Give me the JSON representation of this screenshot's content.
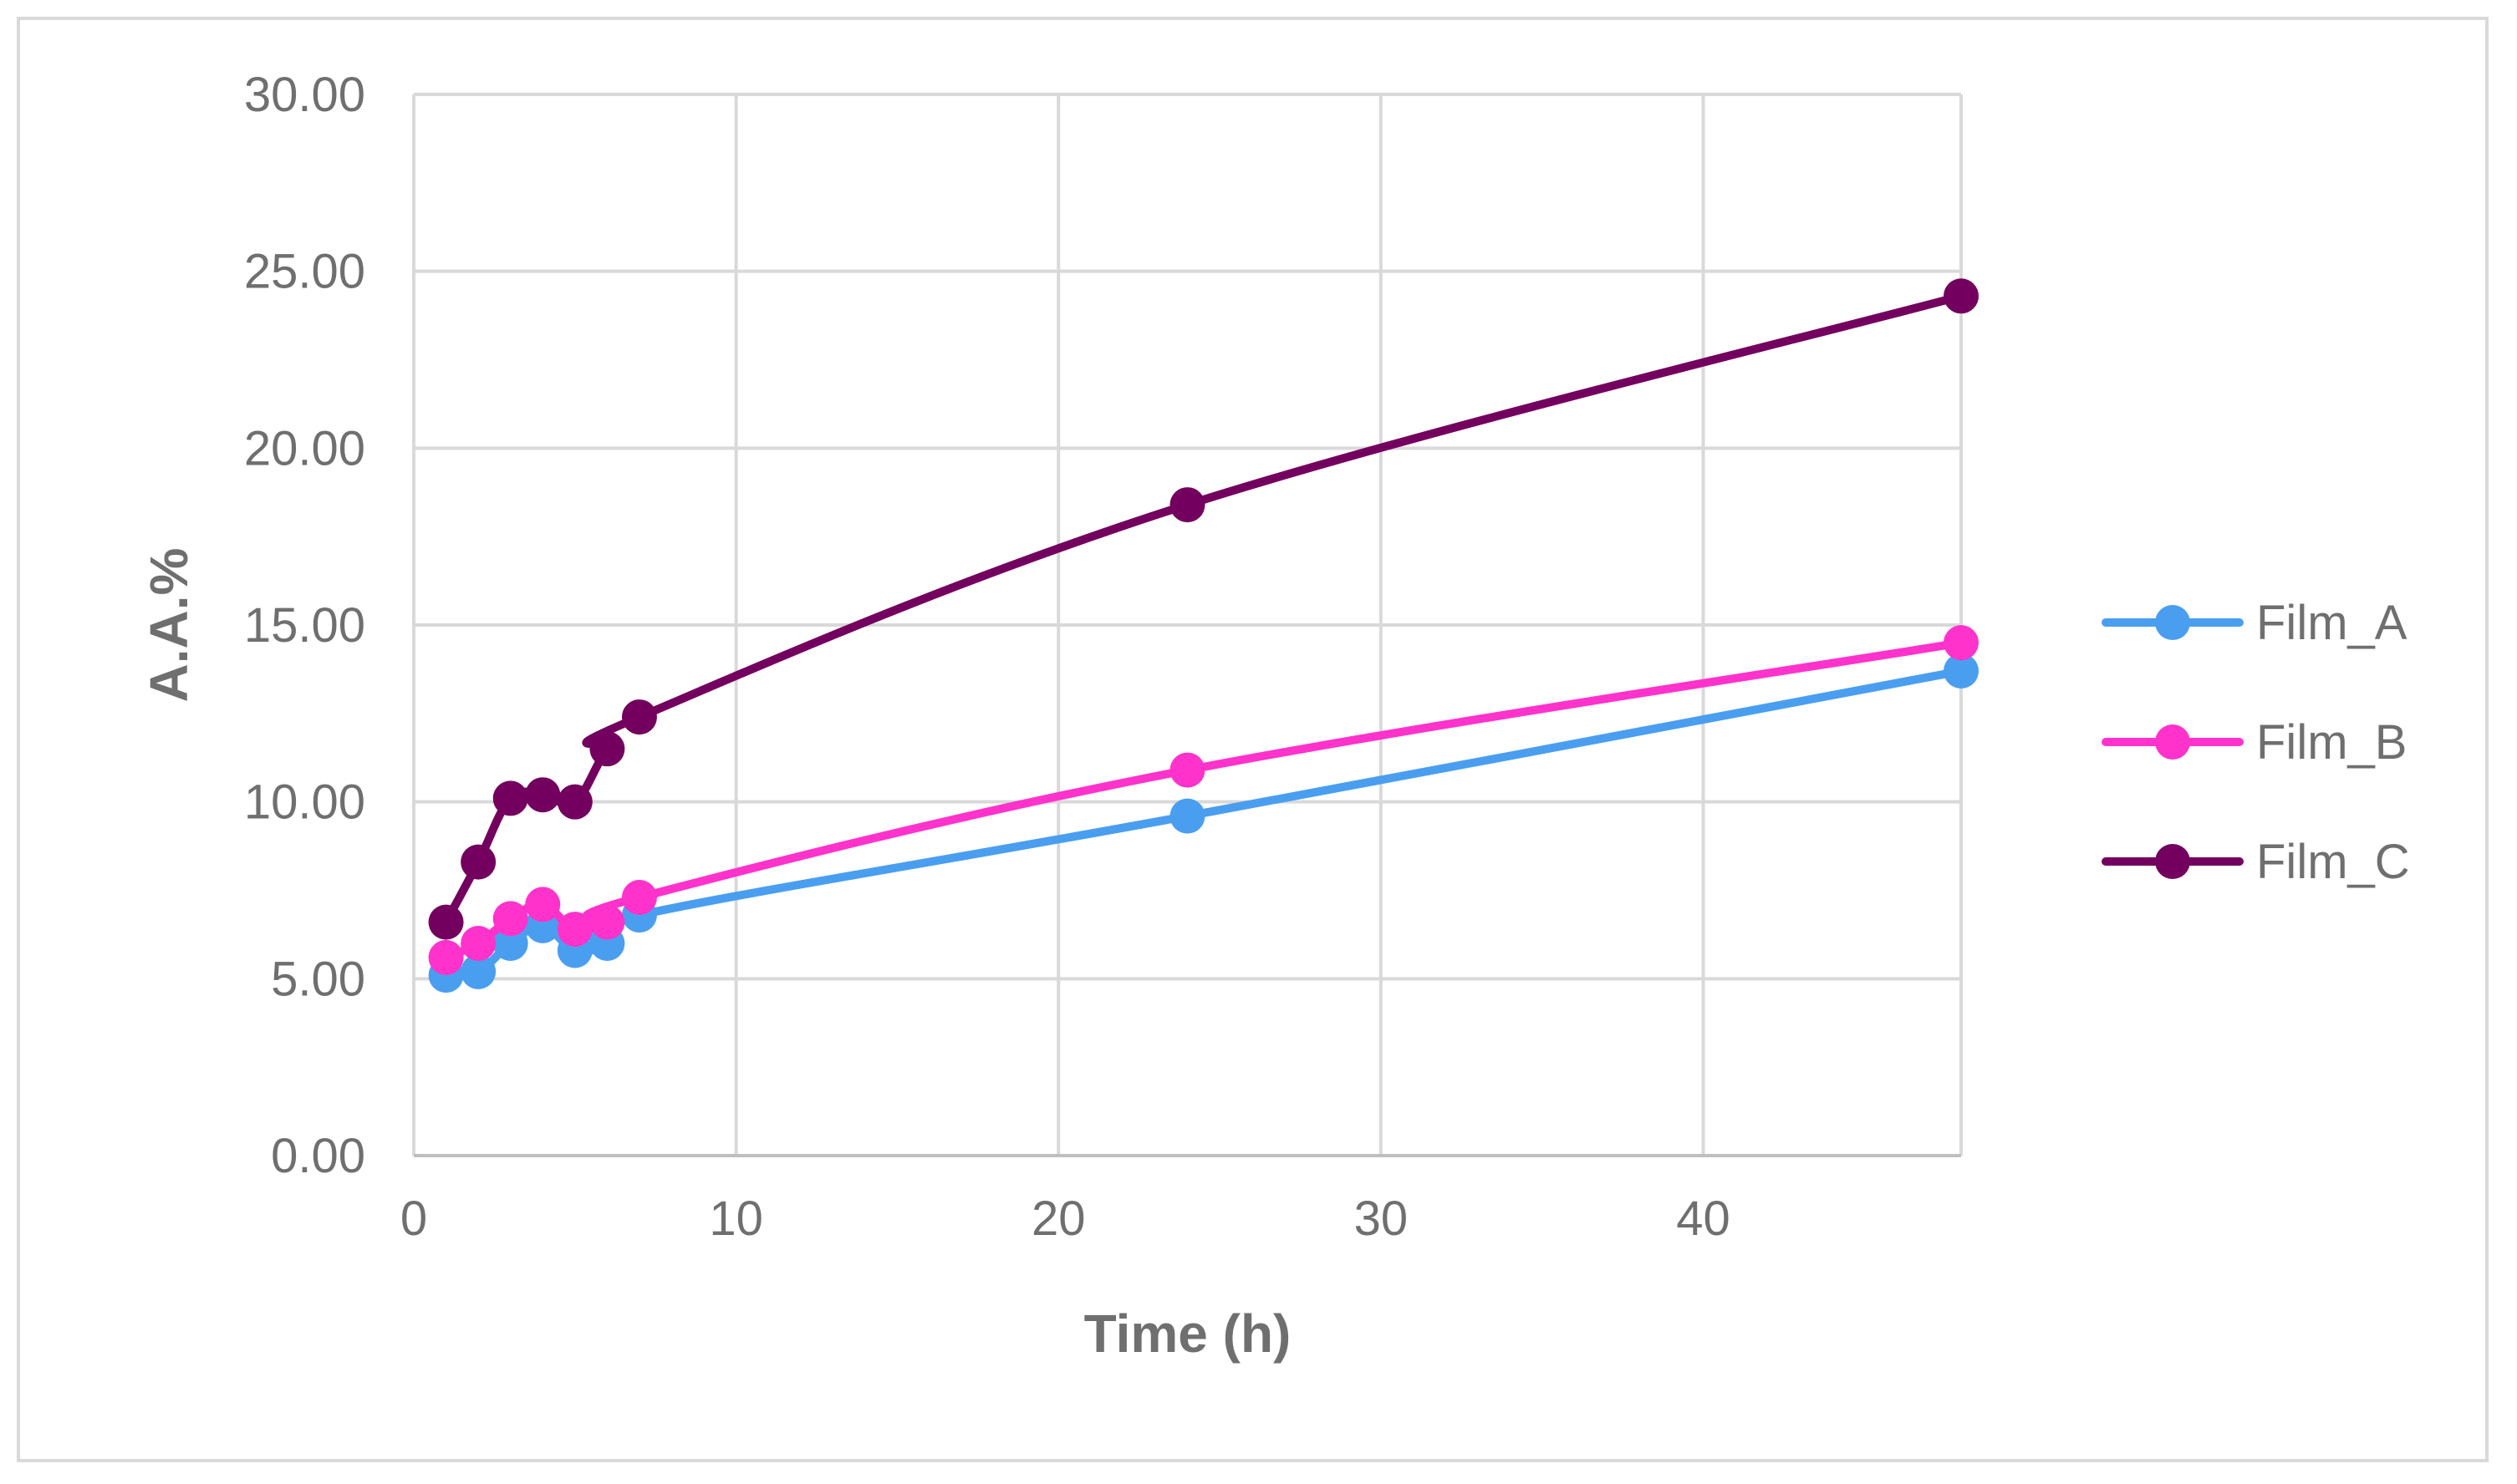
{
  "chart_data": {
    "type": "line",
    "title": "",
    "xlabel": "Time (h)",
    "ylabel": "A.A.%",
    "xlim": [
      0,
      48
    ],
    "ylim": [
      0,
      30
    ],
    "x_ticks": [
      0,
      10,
      20,
      30,
      40
    ],
    "x_tick_labels": [
      "0",
      "10",
      "20",
      "30",
      "40"
    ],
    "y_ticks": [
      0,
      5,
      10,
      15,
      20,
      25,
      30
    ],
    "y_tick_labels": [
      "0.00",
      "5.00",
      "10.00",
      "15.00",
      "20.00",
      "25.00",
      "30.00"
    ],
    "grid": true,
    "legend_position": "right",
    "series": [
      {
        "name": "Film_A",
        "color": "#4a9ef0",
        "x": [
          1,
          2,
          3,
          4,
          5,
          6,
          7,
          24,
          48
        ],
        "values": [
          5.1,
          5.2,
          6.0,
          6.5,
          5.8,
          6.0,
          6.8,
          9.6,
          13.7
        ]
      },
      {
        "name": "Film_B",
        "color": "#ff33cc",
        "x": [
          1,
          2,
          3,
          4,
          5,
          6,
          7,
          24,
          48
        ],
        "values": [
          5.6,
          6.0,
          6.7,
          7.1,
          6.4,
          6.6,
          7.3,
          10.9,
          14.5
        ]
      },
      {
        "name": "Film_C",
        "color": "#73005f",
        "x": [
          1,
          2,
          3,
          4,
          5,
          6,
          7,
          24,
          48
        ],
        "values": [
          6.6,
          8.3,
          10.1,
          10.2,
          10.0,
          11.5,
          12.4,
          18.4,
          24.3
        ]
      }
    ]
  }
}
